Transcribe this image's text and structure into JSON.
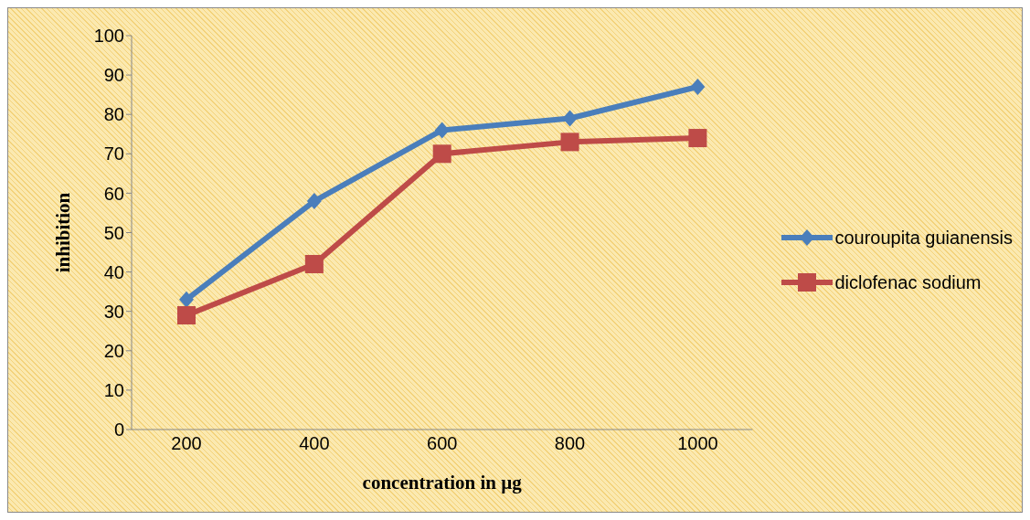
{
  "chart_data": {
    "type": "line",
    "xlabel": "concentration  in µg",
    "ylabel": "inhibition",
    "categories": [
      "200",
      "400",
      "600",
      "800",
      "1000"
    ],
    "series": [
      {
        "name": "couroupita guianensis",
        "color": "#4a7ebb",
        "marker": "diamond",
        "values": [
          33,
          58,
          76,
          79,
          87
        ]
      },
      {
        "name": "diclofenac sodium",
        "color": "#be4b48",
        "marker": "square",
        "values": [
          29,
          42,
          70,
          73,
          74
        ]
      }
    ],
    "ylim": [
      0,
      100
    ],
    "yticks": [
      0,
      10,
      20,
      30,
      40,
      50,
      60,
      70,
      80,
      90,
      100
    ],
    "grid": false,
    "legend": "right"
  }
}
